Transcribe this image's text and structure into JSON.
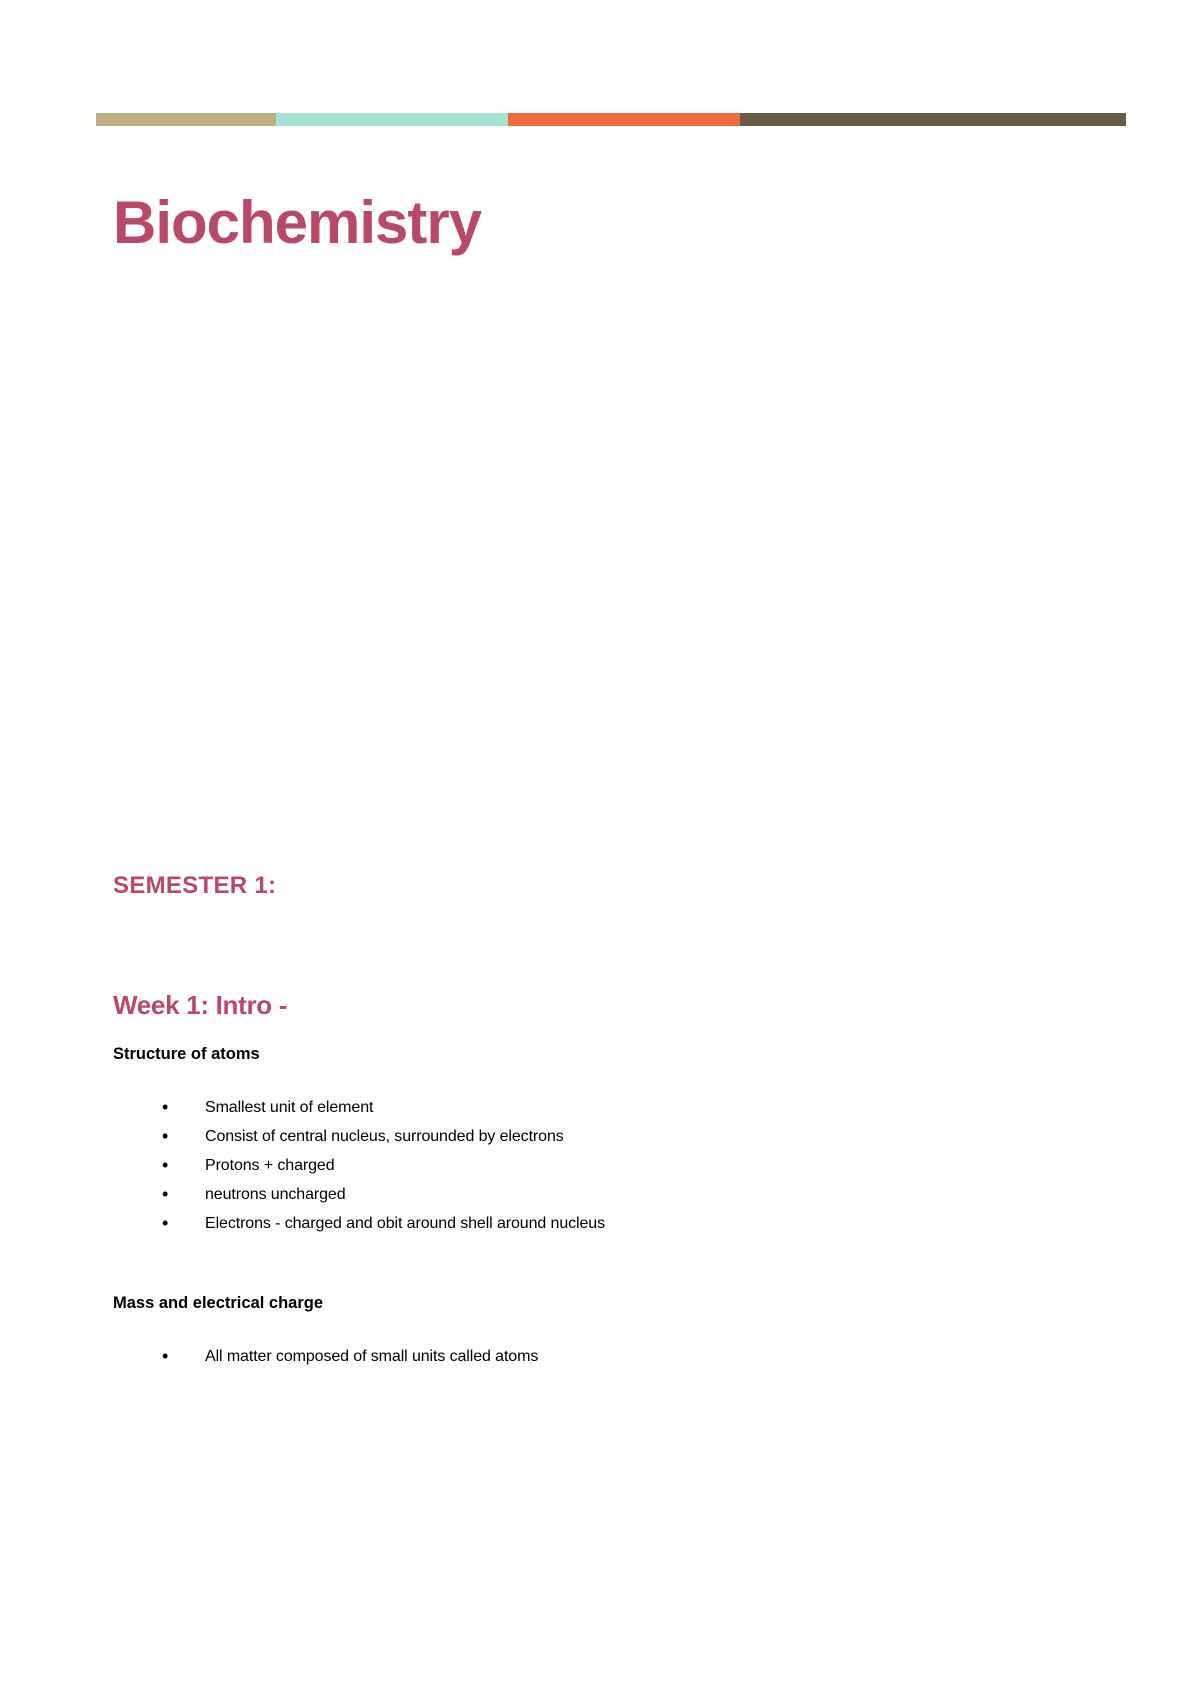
{
  "colorBar": {
    "segments": [
      {
        "color": "#bfae80"
      },
      {
        "color": "#a6e3d7"
      },
      {
        "color": "#ec6d3f"
      },
      {
        "color": "#6b5a45"
      }
    ]
  },
  "title": {
    "text": "Biochemistry",
    "color": "#b84a68"
  },
  "semester": {
    "text": "SEMESTER 1:",
    "color": "#b84a68"
  },
  "week": {
    "text": "Week 1: Intro -",
    "color": "#b84a68"
  },
  "section1": {
    "heading": "Structure of atoms",
    "bullets": [
      "Smallest unit of element",
      "Consist of central nucleus, surrounded by electrons",
      "Protons + charged",
      "neutrons uncharged",
      "Electrons - charged and obit around shell  around nucleus"
    ]
  },
  "section2": {
    "heading": "Mass and electrical charge",
    "bullets": [
      "All matter composed of small units called atoms"
    ]
  },
  "styles": {
    "backgroundColor": "#ffffff",
    "bodyTextColor": "#000000",
    "titleFontSize": 60,
    "semesterFontSize": 24,
    "weekFontSize": 26,
    "subheadingFontSize": 16.5,
    "bodyFontSize": 16
  }
}
